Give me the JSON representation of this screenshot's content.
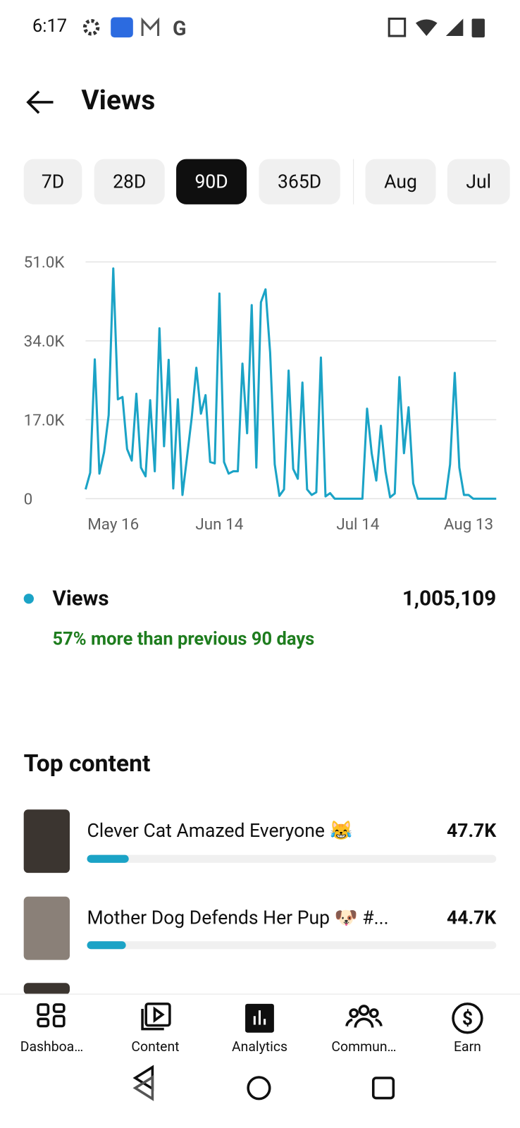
{
  "status_bar": {
    "time": "6:17"
  },
  "header": {
    "title": "Views"
  },
  "tabs": [
    "7D",
    "28D",
    "90D",
    "365D",
    "Aug",
    "Jul"
  ],
  "chart_data": {
    "type": "line",
    "categories": [
      null,
      null,
      null,
      null,
      null,
      null,
      "May 16",
      null,
      null,
      null,
      null,
      null,
      null,
      null,
      null,
      null,
      null,
      null,
      null,
      null,
      null,
      null,
      null,
      null,
      null,
      null,
      null,
      null,
      null,
      "Jun 14",
      null,
      null,
      null,
      null,
      null,
      null,
      null,
      null,
      null,
      null,
      null,
      null,
      null,
      null,
      null,
      null,
      null,
      null,
      null,
      null,
      null,
      null,
      null,
      null,
      null,
      null,
      null,
      null,
      null,
      "Jul 14",
      null,
      null,
      null,
      null,
      null,
      null,
      null,
      null,
      null,
      null,
      null,
      null,
      null,
      null,
      null,
      null,
      null,
      null,
      null,
      null,
      null,
      null,
      null,
      "Aug 13",
      null,
      null,
      null,
      null,
      null,
      null
    ],
    "series": [
      {
        "name": "Views",
        "color": "#1ba3c6",
        "values": [
          2000,
          5600,
          30000,
          5400,
          10000,
          18000,
          49600,
          21400,
          21900,
          10700,
          8200,
          22600,
          6700,
          4800,
          21200,
          5900,
          36700,
          11300,
          29900,
          2200,
          21400,
          800,
          9000,
          17500,
          28200,
          18300,
          22300,
          7900,
          7600,
          44200,
          7900,
          5400,
          5900,
          5900,
          29100,
          14100,
          41700,
          6700,
          42300,
          45100,
          31500,
          7400,
          600,
          2000,
          27600,
          6400,
          4300,
          25000,
          2000,
          800,
          1400,
          30400,
          500,
          1200,
          0,
          0,
          0,
          0,
          0,
          0,
          0,
          19400,
          9800,
          3900,
          15700,
          5900,
          300,
          1100,
          26200,
          9800,
          19700,
          3300,
          0,
          0,
          0,
          0,
          0,
          0,
          0,
          7400,
          27100,
          6700,
          800,
          800,
          0,
          0,
          0,
          0,
          0,
          0
        ]
      }
    ],
    "ylim": [
      0,
      51000
    ],
    "yticks": [
      0,
      {
        "value": 17000,
        "label": "17.0K"
      },
      {
        "value": 34000,
        "label": "34.0K"
      },
      {
        "value": 51000,
        "label": "51.0K"
      }
    ],
    "grid": true
  },
  "summary": {
    "total": "1,005,109",
    "comparison": "57% more than previous 90 days"
  },
  "top_content": {
    "title": "Top content",
    "items": [
      {
        "title": "Clever Cat Amazed Everyone 😹",
        "views": "47.7K"
      },
      {
        "title": "Mother Dog Defends Her Pup 🐶 #...",
        "views": "44.7K"
      }
    ]
  },
  "nav": [
    "Dashboa…",
    "Content",
    "Analytics",
    "Commun…",
    "Earn"
  ]
}
